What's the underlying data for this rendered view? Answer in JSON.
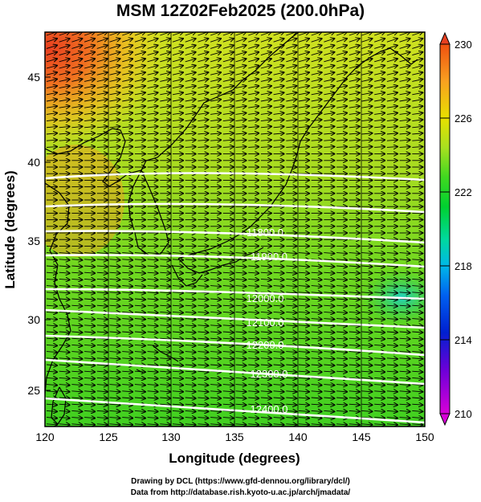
{
  "title": "MSM 12Z02Feb2025 (200.0hPa)",
  "map": {
    "xlabel": "Longitude (degrees)",
    "ylabel": "Latitude  (degrees)",
    "x_ticks": [
      "120",
      "125",
      "130",
      "135",
      "140",
      "145",
      "150"
    ],
    "y_ticks": [
      "25",
      "30",
      "35",
      "40",
      "45"
    ],
    "lon_range": [
      120,
      150
    ],
    "lat_range": [
      22.5,
      47.5
    ],
    "colorbar": {
      "ticks": [
        "230",
        "226",
        "222",
        "218",
        "214",
        "210"
      ],
      "range": [
        210,
        230
      ],
      "colors": [
        "#d800d8",
        "#6a00d8",
        "#0020d0",
        "#0060f0",
        "#00b8e8",
        "#00d8a0",
        "#00d030",
        "#40d820",
        "#a8e020",
        "#e8e000",
        "#f8a020",
        "#f05010"
      ]
    },
    "contour_labels": [
      "11800.0",
      "11900.0",
      "12000.0",
      "12100.0",
      "12200.0",
      "12300.0",
      "12400.0"
    ]
  },
  "credits": {
    "line1": "Drawing by DCL (https://www.gfd-dennou.org/library/dcl/)",
    "line2": "Data from http://database.rish.kyoto-u.ac.jp/arch/jmadata/"
  }
}
